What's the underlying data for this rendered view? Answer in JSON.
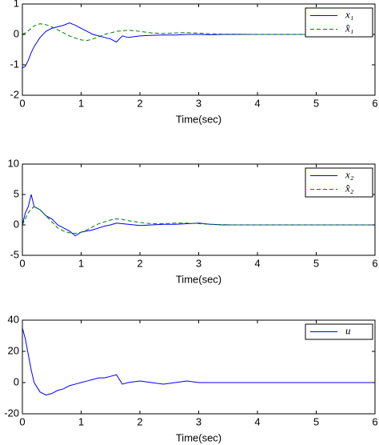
{
  "chart_data": [
    {
      "type": "line",
      "xlabel": "Time(sec)",
      "x": [
        0,
        0.05,
        0.1,
        0.15,
        0.2,
        0.3,
        0.4,
        0.5,
        0.6,
        0.7,
        0.8,
        0.9,
        1.0,
        1.1,
        1.2,
        1.3,
        1.4,
        1.5,
        1.6,
        1.7,
        1.8,
        2.0,
        2.2,
        2.4,
        2.6,
        2.8,
        3.0,
        3.2,
        3.4,
        3.6,
        4,
        4.5,
        5,
        5.5,
        6
      ],
      "xlim": [
        0,
        6
      ],
      "xticks": [
        0,
        1,
        2,
        3,
        4,
        5,
        6
      ],
      "ylim": [
        -2,
        1
      ],
      "yticks": [
        -2,
        -1,
        0,
        1
      ],
      "legend": "upper right",
      "series": [
        {
          "name": "x₁",
          "color": "#0000ff",
          "style": "solid",
          "values": [
            -1.1,
            -1.05,
            -0.85,
            -0.6,
            -0.4,
            -0.1,
            0.1,
            0.2,
            0.25,
            0.3,
            0.38,
            0.3,
            0.2,
            0.1,
            0.0,
            -0.05,
            -0.1,
            -0.15,
            -0.25,
            -0.05,
            -0.1,
            -0.05,
            -0.03,
            -0.02,
            -0.02,
            0,
            0,
            -0.01,
            0,
            0,
            0,
            0,
            0,
            0,
            0
          ]
        },
        {
          "name": "x̂₁",
          "color": "#008000",
          "style": "dashed",
          "values": [
            0,
            0.05,
            0.12,
            0.2,
            0.28,
            0.35,
            0.32,
            0.25,
            0.15,
            0.05,
            -0.05,
            -0.12,
            -0.18,
            -0.2,
            -0.15,
            -0.08,
            0,
            0.05,
            0.1,
            0.12,
            0.14,
            0.1,
            0.05,
            0.03,
            0.05,
            0.06,
            0.04,
            0.02,
            0.01,
            0.01,
            0,
            0,
            0,
            0,
            0
          ]
        }
      ]
    },
    {
      "type": "line",
      "xlabel": "Time(sec)",
      "x": [
        0,
        0.05,
        0.1,
        0.15,
        0.2,
        0.3,
        0.4,
        0.5,
        0.6,
        0.7,
        0.8,
        0.9,
        1.0,
        1.1,
        1.2,
        1.3,
        1.4,
        1.5,
        1.6,
        1.7,
        1.8,
        2.0,
        2.2,
        2.4,
        2.6,
        2.8,
        3.0,
        3.2,
        3.4,
        3.6,
        4,
        4.5,
        5,
        5.5,
        6
      ],
      "xlim": [
        0,
        6
      ],
      "xticks": [
        0,
        1,
        2,
        3,
        4,
        5,
        6
      ],
      "ylim": [
        -5,
        10
      ],
      "yticks": [
        -5,
        0,
        5,
        10
      ],
      "legend": "upper right",
      "series": [
        {
          "name": "x₂",
          "color": "#0000ff",
          "style": "solid",
          "values": [
            0,
            2,
            3,
            5,
            3,
            2.5,
            1.5,
            1,
            0,
            -0.5,
            -1,
            -1.8,
            -1.2,
            -1,
            -0.8,
            -0.5,
            -0.2,
            0,
            0.3,
            0.2,
            0.1,
            -0.1,
            0,
            0.1,
            0.1,
            0.2,
            0.3,
            0.1,
            0,
            0,
            0,
            0,
            0,
            0,
            0
          ]
        },
        {
          "name": "x̂₂",
          "color": "#008000",
          "style": "dashed",
          "values": [
            0,
            1,
            2,
            2.6,
            3,
            2.5,
            1.5,
            0.5,
            -0.5,
            -1,
            -1.3,
            -1.4,
            -1.2,
            -0.8,
            -0.3,
            0.2,
            0.5,
            0.8,
            1,
            0.9,
            0.7,
            0.4,
            0.2,
            0.2,
            0.3,
            0.3,
            0.2,
            0.1,
            0.05,
            0,
            0,
            0,
            0,
            0,
            0
          ]
        }
      ]
    },
    {
      "type": "line",
      "xlabel": "Time(sec)",
      "x": [
        0,
        0.05,
        0.1,
        0.15,
        0.2,
        0.3,
        0.4,
        0.5,
        0.6,
        0.7,
        0.8,
        0.9,
        1.0,
        1.1,
        1.2,
        1.3,
        1.4,
        1.5,
        1.6,
        1.7,
        1.8,
        2.0,
        2.2,
        2.4,
        2.6,
        2.8,
        3.0,
        3.2,
        3.4,
        3.6,
        4,
        4.5,
        5,
        5.5,
        6
      ],
      "xlim": [
        0,
        6
      ],
      "xticks": [
        0,
        1,
        2,
        3,
        4,
        5,
        6
      ],
      "ylim": [
        -20,
        40
      ],
      "yticks": [
        -20,
        0,
        20,
        40
      ],
      "legend": "upper right",
      "series": [
        {
          "name": "u",
          "color": "#0000ff",
          "style": "solid",
          "values": [
            35,
            28,
            18,
            8,
            0,
            -6,
            -8,
            -7,
            -5,
            -4,
            -2,
            -1,
            0,
            1,
            2,
            3,
            3,
            4,
            5,
            -1,
            0,
            1,
            0,
            -1,
            0,
            1,
            0,
            0,
            0,
            0,
            0,
            0,
            0,
            0,
            0
          ]
        }
      ]
    }
  ]
}
